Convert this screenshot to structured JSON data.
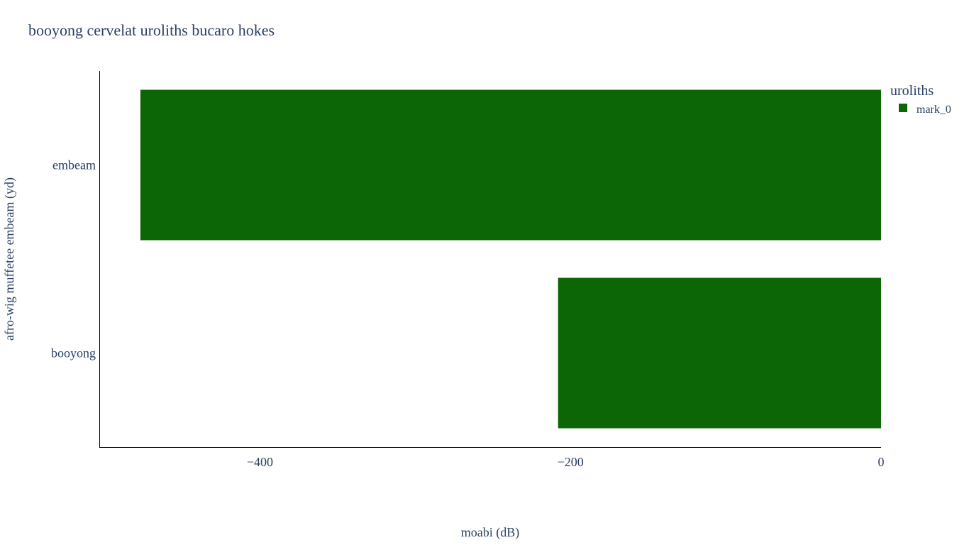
{
  "chart_data": {
    "type": "bar",
    "orientation": "horizontal",
    "title": "booyong cervelat uroliths bucaro hokes",
    "xlabel": "moabi (dB)",
    "ylabel": "afro-wig muffetee embeam (yd)",
    "categories": [
      "embeam",
      "booyong"
    ],
    "series": [
      {
        "name": "mark_0",
        "values": [
          -477,
          -208
        ]
      }
    ],
    "xlim": [
      -503,
      0
    ],
    "xticks": [
      -400,
      -200,
      0
    ],
    "xtick_labels": [
      "−400",
      "−200",
      "0"
    ],
    "grid": false,
    "legend": {
      "title": "uroliths",
      "position": "top-right"
    },
    "colors": {
      "bar": "#0d6606",
      "text": "#2a3f5f",
      "axis": "#000000"
    }
  }
}
